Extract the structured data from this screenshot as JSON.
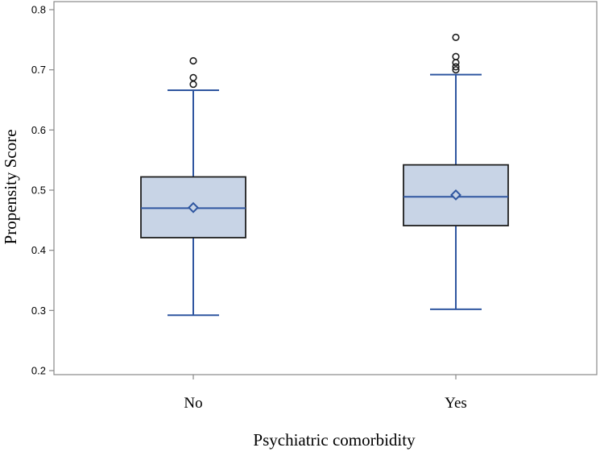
{
  "chart_data": {
    "type": "boxplot",
    "title": "",
    "xlabel": "Psychiatric comorbidity",
    "ylabel": "Propensity Score",
    "ylim": [
      0.2,
      0.8
    ],
    "yticks": [
      "0.2",
      "0.3",
      "0.4",
      "0.5",
      "0.6",
      "0.7",
      "0.8"
    ],
    "categories": [
      "No",
      "Yes"
    ],
    "boxes": [
      {
        "category": "No",
        "whisker_low": 0.292,
        "q1": 0.421,
        "median": 0.47,
        "q3": 0.522,
        "whisker_high": 0.666,
        "mean": 0.471,
        "outliers": [
          0.676,
          0.687,
          0.715
        ]
      },
      {
        "category": "Yes",
        "whisker_low": 0.302,
        "q1": 0.441,
        "median": 0.489,
        "q3": 0.542,
        "whisker_high": 0.692,
        "mean": 0.492,
        "outliers": [
          0.7,
          0.705,
          0.712,
          0.722,
          0.754
        ]
      }
    ],
    "colors": {
      "box_fill": "#c8d4e6",
      "box_stroke": "#1e1e1e",
      "whisker": "#2f56a0",
      "outlier": "#1e1e1e",
      "axis": "#888888"
    },
    "grid": false
  }
}
